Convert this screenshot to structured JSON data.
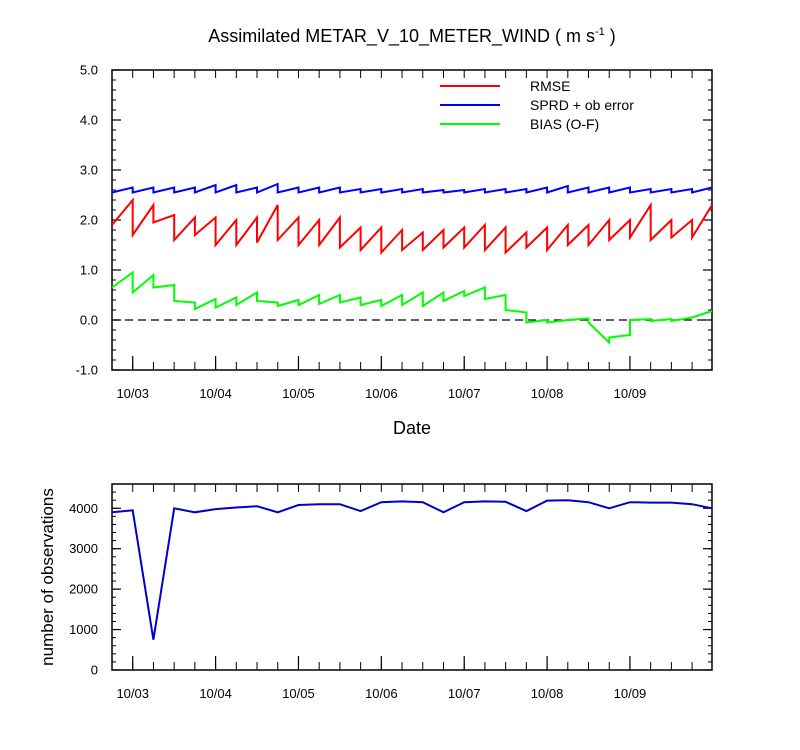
{
  "chart_data": [
    {
      "type": "line",
      "title_main": "Assimilated METAR_V_10_METER_WIND ( m s",
      "title_sup": "-1",
      "title_end": " )",
      "xlabel": "Date",
      "ylabel": "",
      "ylim": [
        -1.0,
        5.0
      ],
      "yticks": [
        "-1.0",
        "0.0",
        "1.0",
        "2.0",
        "3.0",
        "4.0",
        "5.0"
      ],
      "xlim": [
        0,
        7.24
      ],
      "xtick_positions": [
        0.25,
        1.25,
        2.25,
        3.25,
        4.25,
        5.25,
        6.25
      ],
      "xtick_labels": [
        "10/03",
        "10/04",
        "10/05",
        "10/06",
        "10/07",
        "10/08",
        "10/09"
      ],
      "zero_line": true,
      "legend": [
        "RMSE",
        "SPRD + ob error",
        "BIAS (O-F)"
      ],
      "series": [
        {
          "name": "RMSE",
          "color": "#ff0000",
          "x": [
            0,
            0.25,
            0.25,
            0.5,
            0.5,
            0.75,
            0.75,
            1.0,
            1.0,
            1.25,
            1.25,
            1.5,
            1.5,
            1.75,
            1.75,
            2.0,
            2.0,
            2.25,
            2.25,
            2.5,
            2.5,
            2.75,
            2.75,
            3.0,
            3.0,
            3.25,
            3.25,
            3.5,
            3.5,
            3.75,
            3.75,
            4.0,
            4.0,
            4.25,
            4.25,
            4.5,
            4.5,
            4.75,
            4.75,
            5.0,
            5.0,
            5.25,
            5.25,
            5.5,
            5.5,
            5.75,
            5.75,
            6.0,
            6.0,
            6.25,
            6.25,
            6.5,
            6.5,
            6.75,
            6.75,
            7.0,
            7.0,
            7.24
          ],
          "values": [
            1.9,
            2.4,
            1.7,
            2.3,
            1.95,
            2.1,
            1.6,
            2.05,
            1.7,
            2.05,
            1.5,
            2.0,
            1.5,
            2.05,
            1.55,
            2.3,
            1.6,
            2.05,
            1.5,
            2.0,
            1.5,
            2.05,
            1.45,
            1.85,
            1.4,
            1.85,
            1.35,
            1.8,
            1.4,
            1.75,
            1.4,
            1.8,
            1.45,
            1.85,
            1.45,
            1.9,
            1.4,
            1.85,
            1.35,
            1.75,
            1.45,
            1.85,
            1.4,
            1.9,
            1.5,
            1.9,
            1.5,
            2.0,
            1.6,
            2.0,
            1.65,
            2.3,
            1.6,
            2.0,
            1.65,
            2.0,
            1.65,
            2.3
          ]
        },
        {
          "name": "SPRD + ob error",
          "color": "#0000ff",
          "x": [
            0,
            0.25,
            0.25,
            0.5,
            0.5,
            0.75,
            0.75,
            1.0,
            1.0,
            1.25,
            1.25,
            1.5,
            1.5,
            1.75,
            1.75,
            2.0,
            2.0,
            2.25,
            2.25,
            2.5,
            2.5,
            2.75,
            2.75,
            3.0,
            3.0,
            3.25,
            3.25,
            3.5,
            3.5,
            3.75,
            3.75,
            4.0,
            4.0,
            4.25,
            4.25,
            4.5,
            4.5,
            4.75,
            4.75,
            5.0,
            5.0,
            5.25,
            5.25,
            5.5,
            5.5,
            5.75,
            5.75,
            6.0,
            6.0,
            6.25,
            6.25,
            6.5,
            6.5,
            6.75,
            6.75,
            7.0,
            7.0,
            7.24
          ],
          "values": [
            2.55,
            2.65,
            2.55,
            2.65,
            2.55,
            2.65,
            2.55,
            2.65,
            2.55,
            2.7,
            2.55,
            2.7,
            2.55,
            2.65,
            2.55,
            2.72,
            2.55,
            2.65,
            2.55,
            2.65,
            2.55,
            2.65,
            2.55,
            2.62,
            2.55,
            2.62,
            2.55,
            2.62,
            2.55,
            2.62,
            2.55,
            2.6,
            2.55,
            2.6,
            2.55,
            2.62,
            2.55,
            2.62,
            2.55,
            2.62,
            2.55,
            2.65,
            2.55,
            2.68,
            2.55,
            2.65,
            2.55,
            2.65,
            2.55,
            2.65,
            2.55,
            2.62,
            2.55,
            2.62,
            2.55,
            2.62,
            2.55,
            2.65
          ]
        },
        {
          "name": "BIAS (O-F)",
          "color": "#00ff00",
          "x": [
            0,
            0.25,
            0.25,
            0.5,
            0.5,
            0.75,
            0.75,
            1.0,
            1.0,
            1.25,
            1.25,
            1.5,
            1.5,
            1.75,
            1.75,
            2.0,
            2.0,
            2.25,
            2.25,
            2.5,
            2.5,
            2.75,
            2.75,
            3.0,
            3.0,
            3.25,
            3.25,
            3.5,
            3.5,
            3.75,
            3.75,
            4.0,
            4.0,
            4.25,
            4.25,
            4.5,
            4.5,
            4.75,
            4.75,
            5.0,
            5.0,
            5.25,
            5.25,
            5.5,
            5.5,
            5.75,
            5.75,
            6.0,
            6.0,
            6.25,
            6.25,
            6.5,
            6.5,
            6.75,
            6.75,
            7.0,
            7.0,
            7.24
          ],
          "values": [
            0.65,
            0.95,
            0.55,
            0.9,
            0.65,
            0.7,
            0.38,
            0.35,
            0.22,
            0.42,
            0.25,
            0.45,
            0.3,
            0.55,
            0.38,
            0.35,
            0.28,
            0.4,
            0.3,
            0.5,
            0.32,
            0.5,
            0.35,
            0.45,
            0.3,
            0.4,
            0.28,
            0.5,
            0.3,
            0.55,
            0.28,
            0.55,
            0.38,
            0.58,
            0.48,
            0.65,
            0.42,
            0.5,
            0.2,
            0.15,
            -0.05,
            0.0,
            -0.05,
            0.0,
            0.0,
            0.03,
            -0.05,
            -0.45,
            -0.35,
            -0.3,
            0.0,
            0.02,
            -0.02,
            0.02,
            -0.02,
            0.05,
            0.05,
            0.18
          ]
        }
      ]
    },
    {
      "type": "line",
      "xlabel": "",
      "ylabel": "number of observations",
      "ylim": [
        0,
        4600
      ],
      "yticks": [
        "0",
        "1000",
        "2000",
        "3000",
        "4000"
      ],
      "xlim": [
        0,
        7.24
      ],
      "xtick_positions": [
        0.25,
        1.25,
        2.25,
        3.25,
        4.25,
        5.25,
        6.25
      ],
      "xtick_labels": [
        "10/03",
        "10/04",
        "10/05",
        "10/06",
        "10/07",
        "10/08",
        "10/09"
      ],
      "series": [
        {
          "name": "observations",
          "color": "#0000cc",
          "x": [
            0,
            0.25,
            0.5,
            0.75,
            1.0,
            1.25,
            1.5,
            1.75,
            2.0,
            2.25,
            2.5,
            2.75,
            3.0,
            3.25,
            3.5,
            3.75,
            4.0,
            4.25,
            4.5,
            4.75,
            5.0,
            5.25,
            5.5,
            5.75,
            6.0,
            6.25,
            6.5,
            6.75,
            7.0,
            7.24
          ],
          "values": [
            3900,
            3950,
            750,
            4000,
            3900,
            3980,
            4020,
            4050,
            3900,
            4080,
            4100,
            4100,
            3930,
            4150,
            4170,
            4150,
            3900,
            4150,
            4170,
            4160,
            3930,
            4190,
            4200,
            4150,
            4000,
            4150,
            4140,
            4140,
            4100,
            4000
          ]
        }
      ]
    }
  ]
}
